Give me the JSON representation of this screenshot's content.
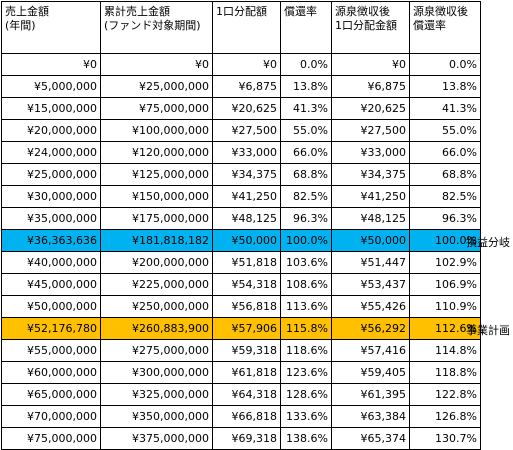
{
  "headers": [
    "売上金額\n(年間)",
    "累計売上金額\n(ファンド対象期間)",
    "1口分配額",
    "償還率",
    "源泉徴収後\n1口分配金額",
    "源泉徴収後\n償還率"
  ],
  "rows": [
    [
      "¥0",
      "¥0",
      "¥0",
      "0.0%",
      "¥0",
      "0.0%"
    ],
    [
      "¥5,000,000",
      "¥25,000,000",
      "¥6,875",
      "13.8%",
      "¥6,875",
      "13.8%"
    ],
    [
      "¥15,000,000",
      "¥75,000,000",
      "¥20,625",
      "41.3%",
      "¥20,625",
      "41.3%"
    ],
    [
      "¥20,000,000",
      "¥100,000,000",
      "¥27,500",
      "55.0%",
      "¥27,500",
      "55.0%"
    ],
    [
      "¥24,000,000",
      "¥120,000,000",
      "¥33,000",
      "66.0%",
      "¥33,000",
      "66.0%"
    ],
    [
      "¥25,000,000",
      "¥125,000,000",
      "¥34,375",
      "68.8%",
      "¥34,375",
      "68.8%"
    ],
    [
      "¥30,000,000",
      "¥150,000,000",
      "¥41,250",
      "82.5%",
      "¥41,250",
      "82.5%"
    ],
    [
      "¥35,000,000",
      "¥175,000,000",
      "¥48,125",
      "96.3%",
      "¥48,125",
      "96.3%"
    ],
    [
      "¥36,363,636",
      "¥181,818,182",
      "¥50,000",
      "100.0%",
      "¥50,000",
      "100.0%"
    ],
    [
      "¥40,000,000",
      "¥200,000,000",
      "¥51,818",
      "103.6%",
      "¥51,447",
      "102.9%"
    ],
    [
      "¥45,000,000",
      "¥225,000,000",
      "¥54,318",
      "108.6%",
      "¥53,437",
      "106.9%"
    ],
    [
      "¥50,000,000",
      "¥250,000,000",
      "¥56,818",
      "113.6%",
      "¥55,426",
      "110.9%"
    ],
    [
      "¥52,176,780",
      "¥260,883,900",
      "¥57,906",
      "115.8%",
      "¥56,292",
      "112.6%"
    ],
    [
      "¥55,000,000",
      "¥275,000,000",
      "¥59,318",
      "118.6%",
      "¥57,416",
      "114.8%"
    ],
    [
      "¥60,000,000",
      "¥300,000,000",
      "¥61,818",
      "123.6%",
      "¥59,405",
      "118.8%"
    ],
    [
      "¥65,000,000",
      "¥325,000,000",
      "¥64,318",
      "128.6%",
      "¥61,395",
      "122.8%"
    ],
    [
      "¥70,000,000",
      "¥350,000,000",
      "¥66,818",
      "133.6%",
      "¥63,384",
      "126.8%"
    ],
    [
      "¥75,000,000",
      "¥375,000,000",
      "¥69,318",
      "138.6%",
      "¥65,374",
      "130.7%"
    ]
  ],
  "highlights": {
    "breakeven": {
      "label": "損益分岐",
      "color": "#00b3f0"
    },
    "business_plan": {
      "label": "事業計画",
      "color": "#ffc000"
    }
  }
}
